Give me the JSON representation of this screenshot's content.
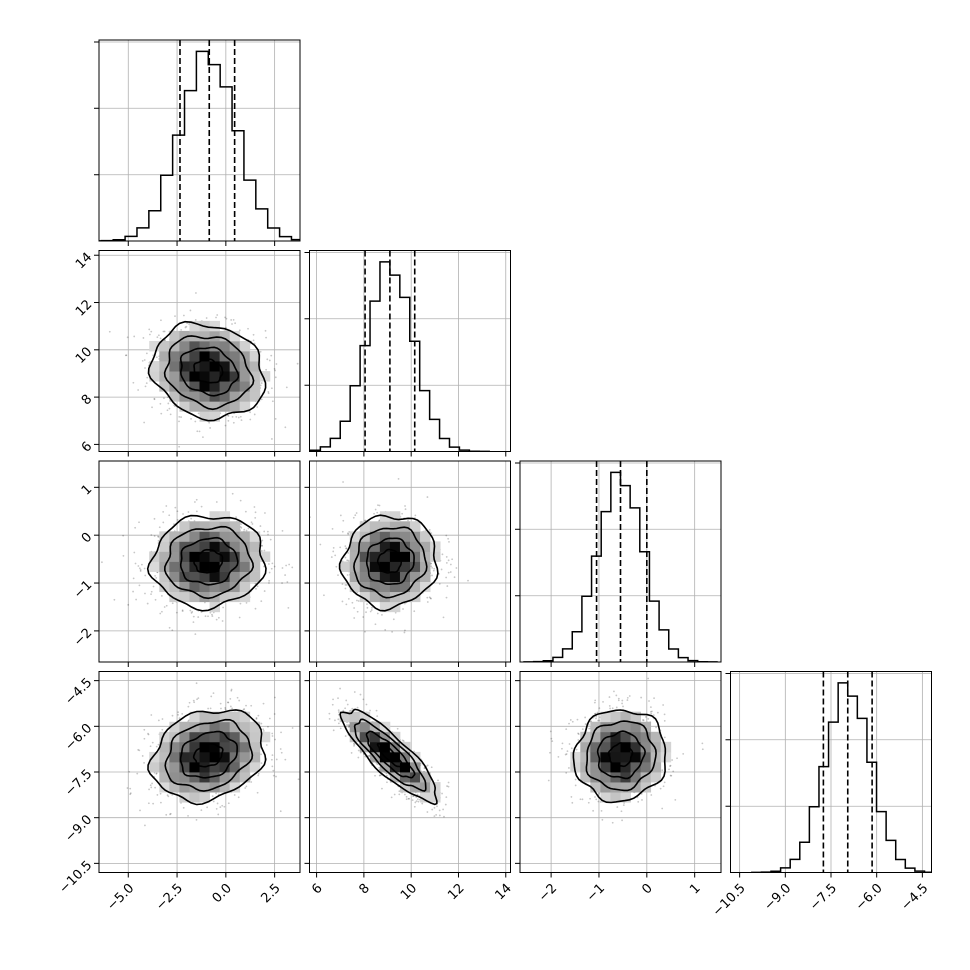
{
  "chart_data": {
    "type": "corner",
    "parameters": [
      {
        "range": [
          -6.5,
          3.8
        ],
        "ticks": [
          -5.0,
          -2.5,
          0.0,
          2.5
        ],
        "tick_labels": [
          "−5.0",
          "−2.5",
          "0.0",
          "2.5"
        ],
        "mean": -0.9,
        "sd": 1.45,
        "quantiles": [
          -2.35,
          -0.85,
          0.45
        ]
      },
      {
        "range": [
          5.7,
          14.2
        ],
        "ticks": [
          6,
          8,
          10,
          12,
          14
        ],
        "tick_labels": [
          "6",
          "8",
          "10",
          "12",
          "14"
        ],
        "mean": 9.1,
        "sd": 1.0,
        "quantiles": [
          8.05,
          9.1,
          10.15
        ]
      },
      {
        "range": [
          -2.65,
          1.55
        ],
        "ticks": [
          -2,
          -1,
          0,
          1
        ],
        "tick_labels": [
          "−2",
          "−1",
          "0",
          "1"
        ],
        "mean": -0.55,
        "sd": 0.48,
        "quantiles": [
          -1.05,
          -0.55,
          0.0
        ]
      },
      {
        "range": [
          -10.8,
          -4.2
        ],
        "ticks": [
          -10.5,
          -9.0,
          -7.5,
          -6.0,
          -4.5
        ],
        "tick_labels": [
          "−10.5",
          "−9.0",
          "−7.5",
          "−6.0",
          "−4.5"
        ],
        "mean": -6.95,
        "sd": 0.75,
        "quantiles": [
          -7.75,
          -6.95,
          -6.15
        ]
      }
    ],
    "correlations": {
      "1-0": -0.15,
      "2-0": 0.05,
      "2-1": 0.05,
      "3-0": 0.2,
      "3-1": -0.85,
      "3-2": 0.05
    },
    "contour_levels_sigma": [
      0.5,
      1.0,
      1.5,
      2.0
    ],
    "grid": true
  }
}
